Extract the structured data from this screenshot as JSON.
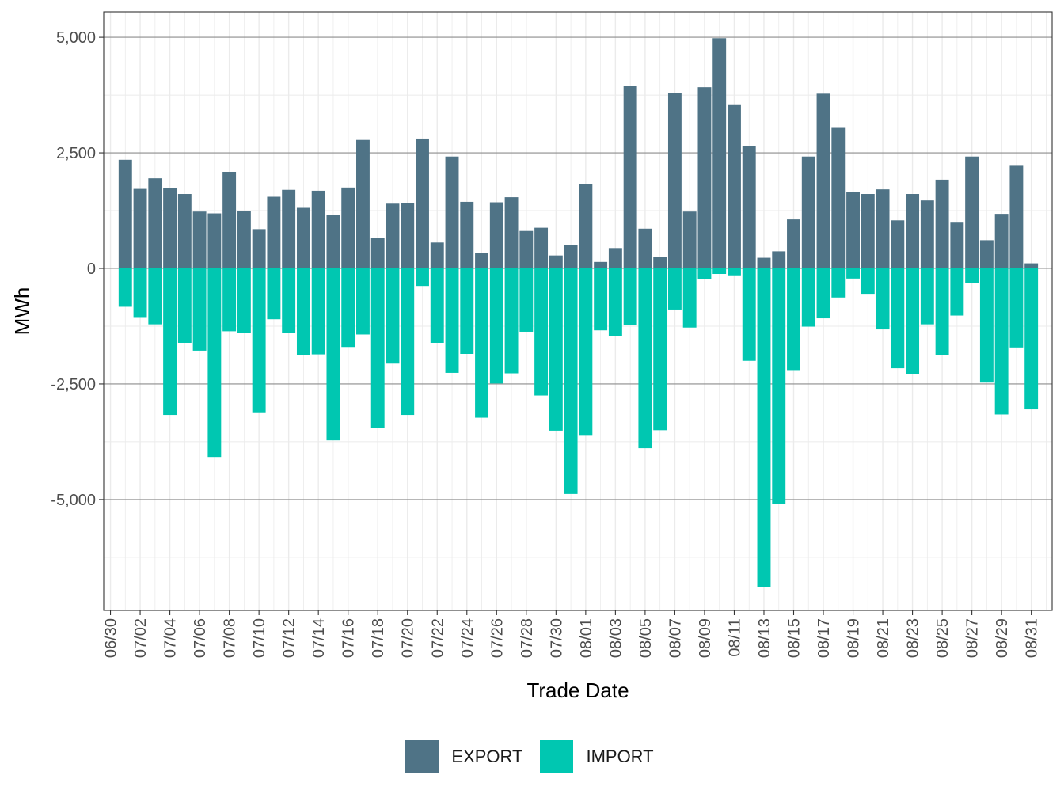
{
  "chart_data": {
    "type": "bar",
    "stacked": "diverging",
    "xlabel": "Trade Date",
    "ylabel": "MWh",
    "ylim": [
      -7400,
      5550
    ],
    "y_major_ticks": [
      5000,
      2500,
      0,
      -2500,
      -5000
    ],
    "y_tick_labels": [
      "5,000",
      "2,500",
      "0",
      "-2,500",
      "-5,000"
    ],
    "y_minor_ticks": [
      3750,
      1250,
      -1250,
      -3750,
      -6250
    ],
    "x_tick_labels": [
      "06/30",
      "07/02",
      "07/04",
      "07/06",
      "07/08",
      "07/10",
      "07/12",
      "07/14",
      "07/16",
      "07/18",
      "07/20",
      "07/22",
      "07/24",
      "07/26",
      "07/28",
      "07/30",
      "08/01",
      "08/03",
      "08/05",
      "08/07",
      "08/09",
      "08/11",
      "08/13",
      "08/15",
      "08/17",
      "08/19",
      "08/21",
      "08/23",
      "08/25",
      "08/27",
      "08/29",
      "08/31"
    ],
    "categories": [
      "07/01",
      "07/02",
      "07/03",
      "07/04",
      "07/05",
      "07/06",
      "07/07",
      "07/08",
      "07/09",
      "07/10",
      "07/11",
      "07/12",
      "07/13",
      "07/14",
      "07/15",
      "07/16",
      "07/17",
      "07/18",
      "07/19",
      "07/20",
      "07/21",
      "07/22",
      "07/23",
      "07/24",
      "07/25",
      "07/26",
      "07/27",
      "07/28",
      "07/29",
      "07/30",
      "07/31",
      "08/01",
      "08/02",
      "08/03",
      "08/04",
      "08/05",
      "08/06",
      "08/07",
      "08/08",
      "08/09",
      "08/10",
      "08/11",
      "08/12",
      "08/13",
      "08/14",
      "08/15",
      "08/16",
      "08/17",
      "08/18",
      "08/19",
      "08/20",
      "08/21",
      "08/22",
      "08/23",
      "08/24",
      "08/25",
      "08/26",
      "08/27",
      "08/28",
      "08/29",
      "08/30",
      "08/31"
    ],
    "series": [
      {
        "name": "EXPORT",
        "color": "#4f7386",
        "values": [
          2350,
          1720,
          1950,
          1730,
          1610,
          1230,
          1190,
          2090,
          1250,
          850,
          1550,
          1700,
          1310,
          1680,
          1160,
          1750,
          2780,
          660,
          1400,
          1420,
          2810,
          560,
          2420,
          1440,
          330,
          1430,
          1540,
          810,
          880,
          280,
          500,
          1820,
          140,
          440,
          3950,
          860,
          240,
          3800,
          1230,
          3920,
          4980,
          3550,
          2650,
          230,
          370,
          1060,
          2420,
          3780,
          3040,
          1660,
          1610,
          1710,
          1040,
          1610,
          1470,
          1920,
          990,
          2420,
          610,
          1180,
          2220,
          110
        ]
      },
      {
        "name": "IMPORT",
        "color": "#00c7b1",
        "values": [
          -830,
          -1070,
          -1210,
          -3170,
          -1610,
          -1780,
          -4080,
          -1360,
          -1400,
          -3130,
          -1100,
          -1390,
          -1880,
          -1860,
          -3720,
          -1700,
          -1430,
          -3460,
          -2060,
          -3170,
          -380,
          -1610,
          -2260,
          -1850,
          -3230,
          -2490,
          -2270,
          -1370,
          -2750,
          -3510,
          -4880,
          -3620,
          -1340,
          -1460,
          -1230,
          -3890,
          -3500,
          -890,
          -1280,
          -230,
          -120,
          -150,
          -2000,
          -6900,
          -5100,
          -2200,
          -1260,
          -1080,
          -630,
          -220,
          -550,
          -1320,
          -2160,
          -2290,
          -1210,
          -1880,
          -1020,
          -310,
          -2470,
          -3160,
          -1710,
          -3050
        ]
      }
    ]
  }
}
